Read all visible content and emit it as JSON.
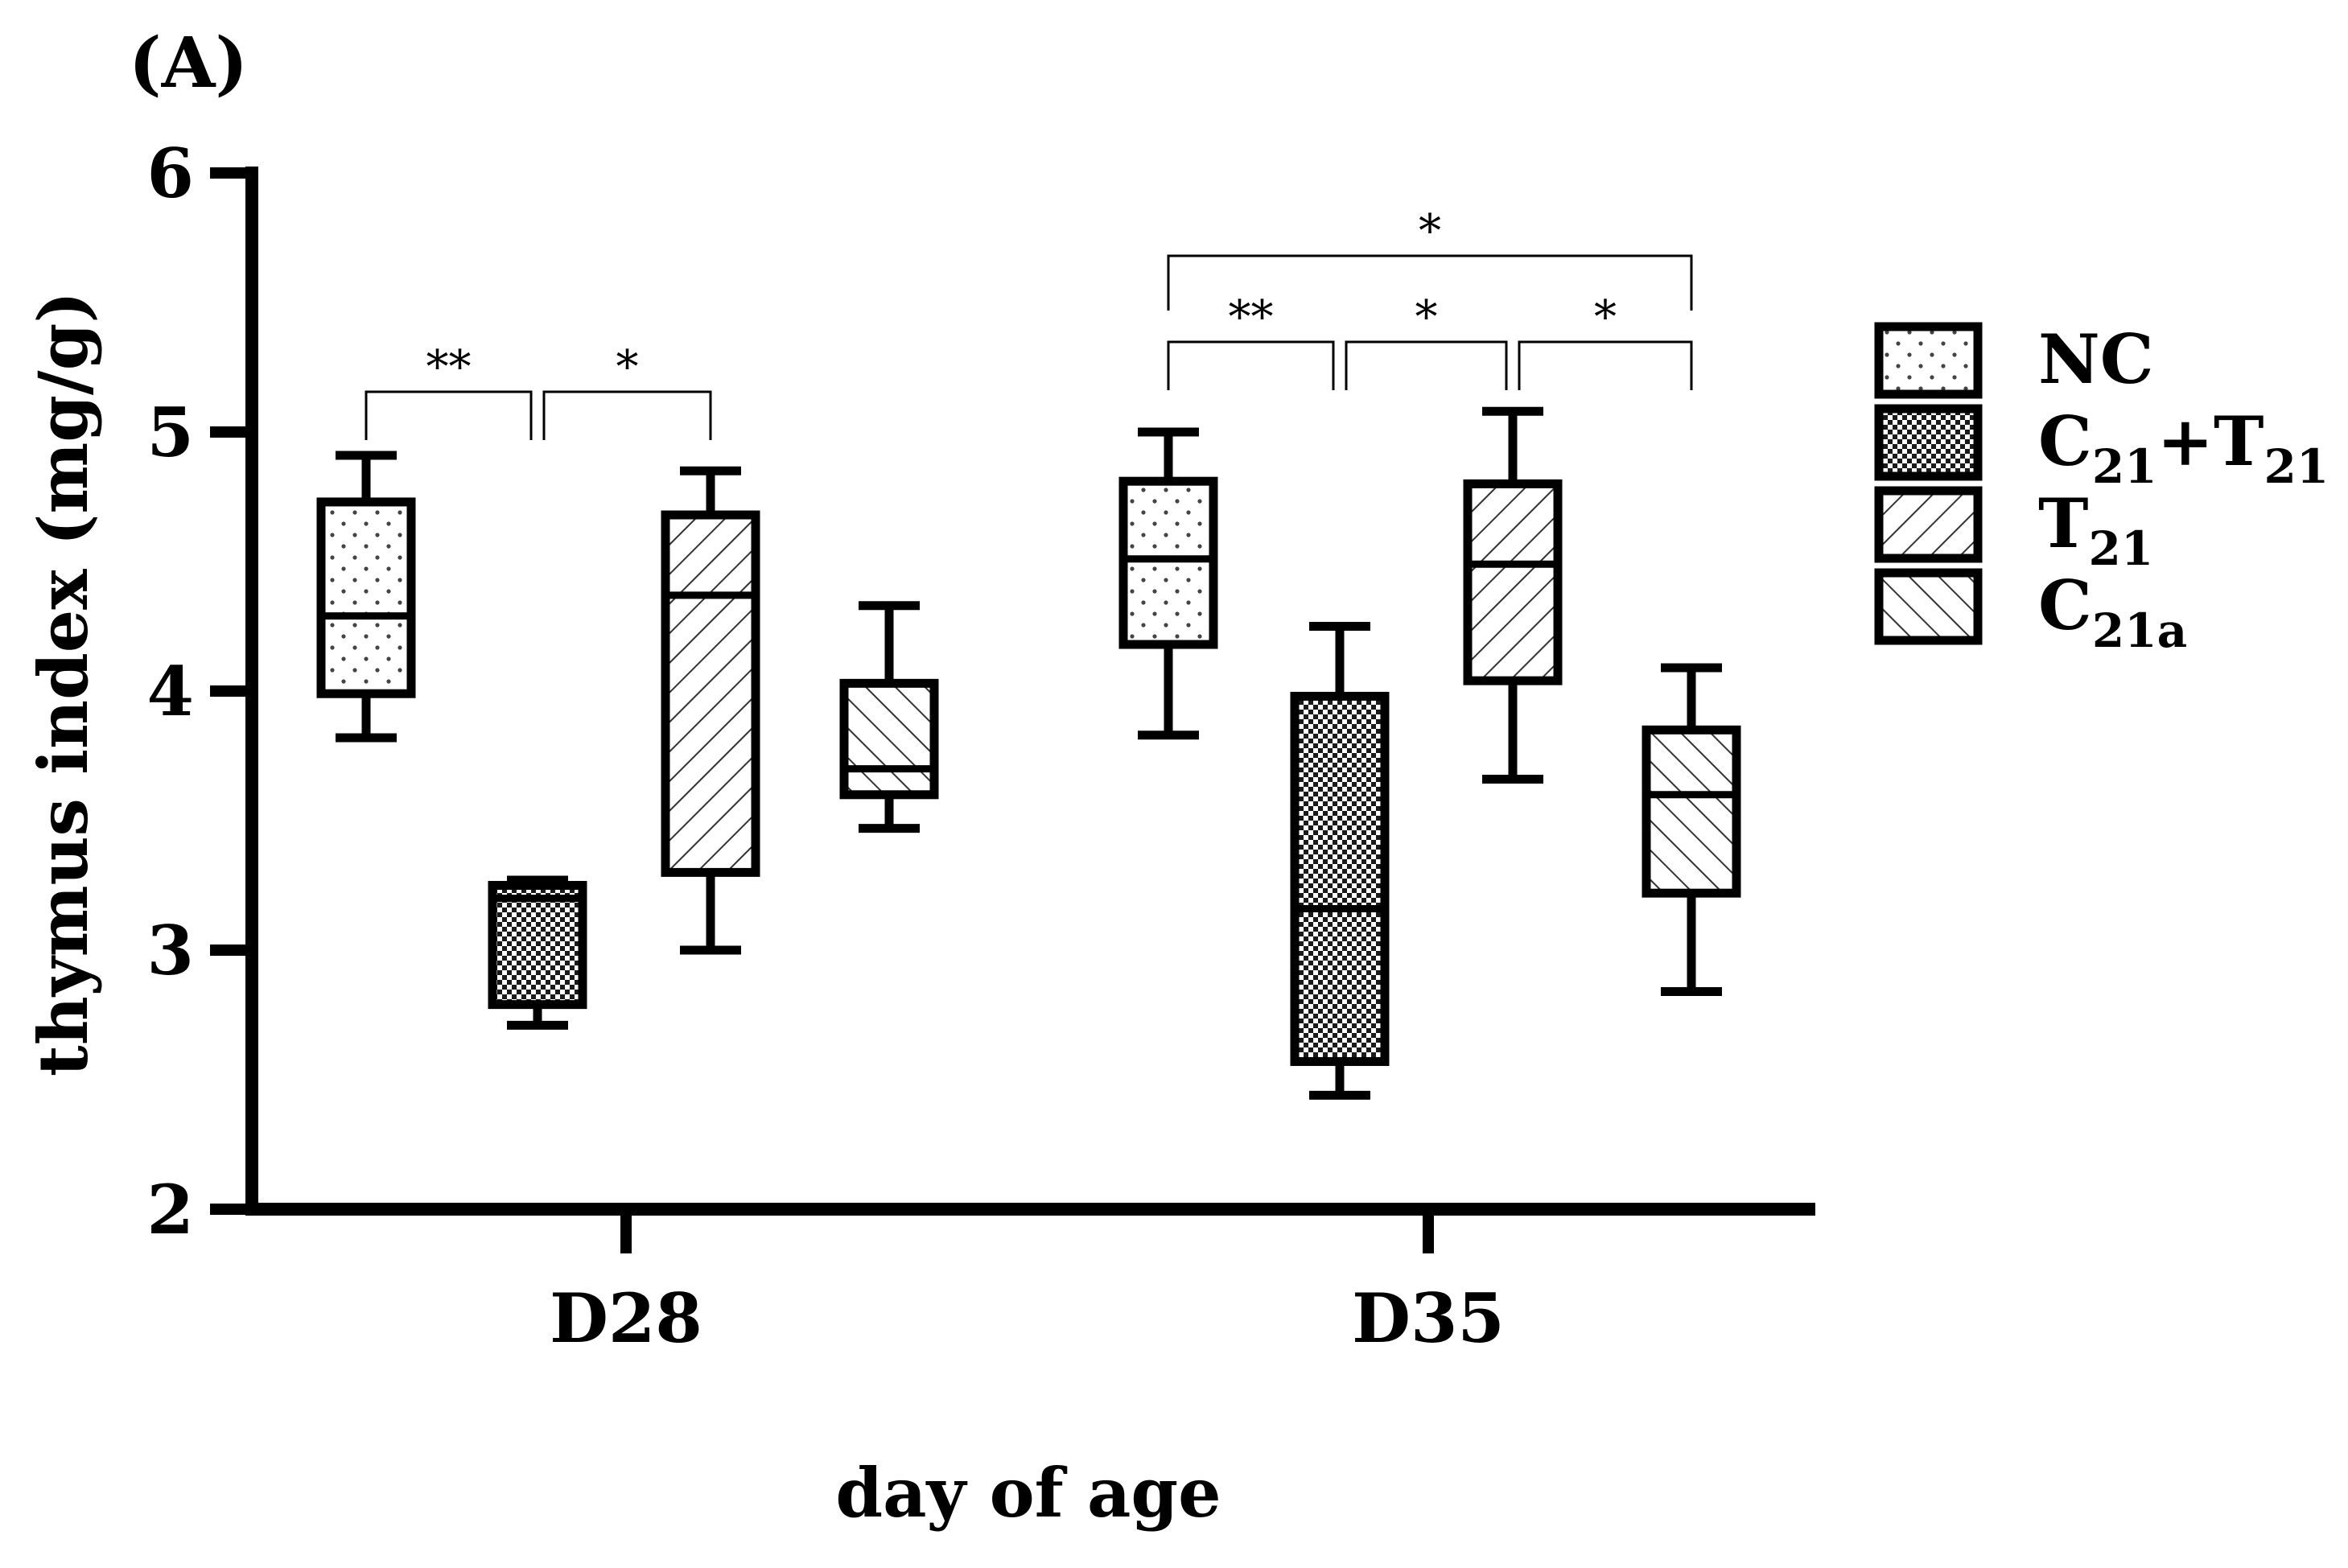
{
  "chart_data": {
    "type": "box",
    "panel_label": "(A)",
    "xlabel": "day of age",
    "ylabel": "thymus index (mg/g)",
    "ylim": [
      2,
      6
    ],
    "yticks": [
      2,
      3,
      4,
      5,
      6
    ],
    "ytick_labels": [
      "2",
      "3",
      "4",
      "5",
      "6"
    ],
    "categories": [
      "D28",
      "D35"
    ],
    "legend_position": "right",
    "series": [
      {
        "name": "NC",
        "legend_main": "NC",
        "legend_sub1": "",
        "legend_mid": "",
        "legend_sub2": "",
        "pattern": "dots",
        "boxes": [
          {
            "min": 3.82,
            "q1": 3.99,
            "median": 4.29,
            "q3": 4.73,
            "max": 4.91
          },
          {
            "min": 3.83,
            "q1": 4.18,
            "median": 4.51,
            "q3": 4.81,
            "max": 5.0
          }
        ]
      },
      {
        "name": "C21+T21",
        "legend_main": "C",
        "legend_sub1": "21",
        "legend_mid": "+T",
        "legend_sub2": "21",
        "pattern": "checker",
        "boxes": [
          {
            "min": 2.71,
            "q1": 2.79,
            "median": 3.2,
            "q3": 3.25,
            "max": 3.27
          },
          {
            "min": 2.44,
            "q1": 2.57,
            "median": 3.16,
            "q3": 3.98,
            "max": 4.25
          }
        ]
      },
      {
        "name": "T21",
        "legend_main": "T",
        "legend_sub1": "21",
        "legend_mid": "",
        "legend_sub2": "",
        "pattern": "hatch-up",
        "boxes": [
          {
            "min": 3.0,
            "q1": 3.3,
            "median": 4.37,
            "q3": 4.68,
            "max": 4.85
          },
          {
            "min": 3.66,
            "q1": 4.04,
            "median": 4.49,
            "q3": 4.8,
            "max": 5.08
          }
        ]
      },
      {
        "name": "C21a",
        "legend_main": "C",
        "legend_sub1": "21a",
        "legend_mid": "",
        "legend_sub2": "",
        "pattern": "hatch-down",
        "boxes": [
          {
            "min": 3.47,
            "q1": 3.6,
            "median": 3.7,
            "q3": 4.03,
            "max": 4.33
          },
          {
            "min": 2.84,
            "q1": 3.22,
            "median": 3.6,
            "q3": 3.85,
            "max": 4.09
          }
        ]
      }
    ],
    "annotations": [
      {
        "group": 0,
        "from": 0,
        "to": 1,
        "label": "**",
        "level": 0
      },
      {
        "group": 0,
        "from": 1,
        "to": 2,
        "label": "*",
        "level": 0
      },
      {
        "group": 1,
        "from": 0,
        "to": 1,
        "label": "**",
        "level": 0
      },
      {
        "group": 1,
        "from": 1,
        "to": 2,
        "label": "*",
        "level": 0
      },
      {
        "group": 1,
        "from": 2,
        "to": 3,
        "label": "*",
        "level": 0
      },
      {
        "group": 1,
        "from": 0,
        "to": 3,
        "label": "*",
        "level": 1
      }
    ]
  }
}
